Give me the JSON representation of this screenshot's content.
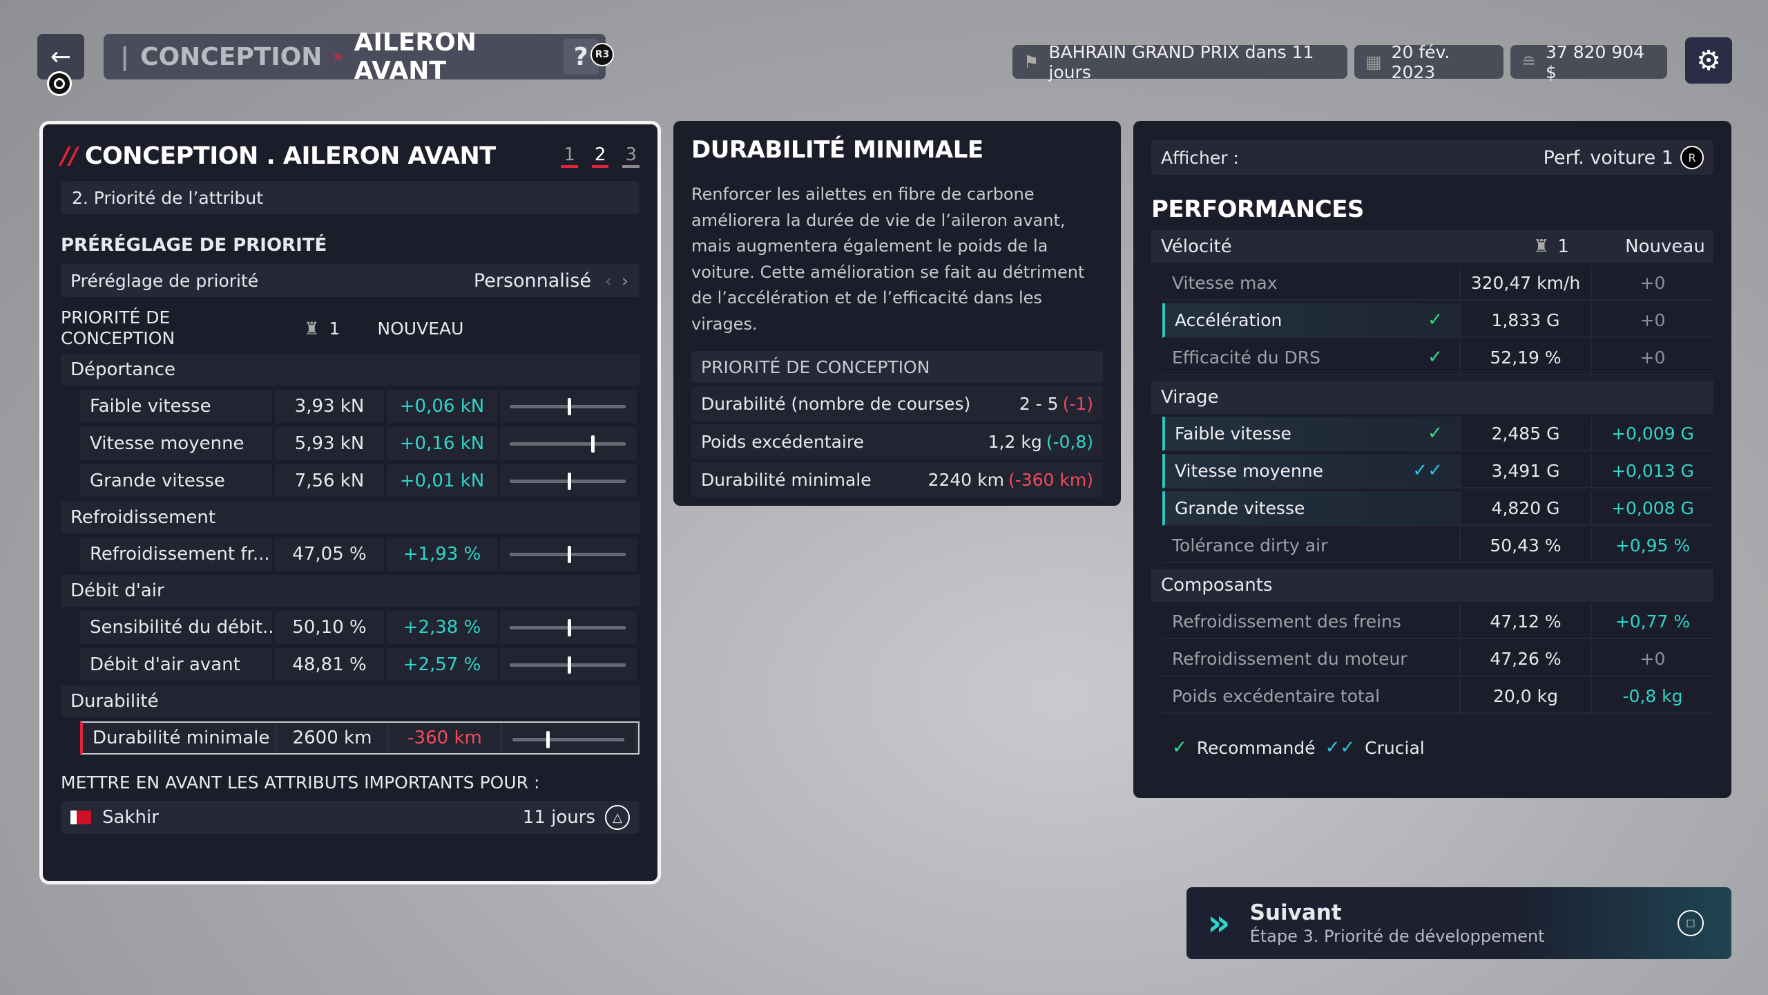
{
  "topbar": {
    "breadcrumb": [
      "CONCEPTION",
      "AILERON AVANT"
    ],
    "help_label": "?",
    "help_badge": "R3",
    "race": "BAHRAIN GRAND PRIX dans 11 jours",
    "date": "20 fév. 2023",
    "money": "37 820 904 $"
  },
  "left": {
    "title": "CONCEPTION . AILERON AVANT",
    "steps": [
      "1",
      "2",
      "3"
    ],
    "active_step": 2,
    "subheader": "2. Priorité de l’attribut",
    "preset_heading": "PRÉRÉGLAGE DE PRIORITÉ",
    "preset_label": "Préréglage de priorité",
    "preset_value": "Personnalisé",
    "col_heading": "PRIORITÉ DE CONCEPTION",
    "col_car": "1",
    "col_new": "NOUVEAU",
    "groups": [
      {
        "name": "Déportance",
        "rows": [
          {
            "label": "Faible vitesse",
            "value": "3,93 kN",
            "delta": "+0,06 kN",
            "slider": 0.5
          },
          {
            "label": "Vitesse moyenne",
            "value": "5,93 kN",
            "delta": "+0,16 kN",
            "slider": 0.7
          },
          {
            "label": "Grande vitesse",
            "value": "7,56 kN",
            "delta": "+0,01 kN",
            "slider": 0.5
          }
        ]
      },
      {
        "name": "Refroidissement",
        "rows": [
          {
            "label": "Refroidissement fr...",
            "value": "47,05 %",
            "delta": "+1,93 %",
            "slider": 0.5
          }
        ]
      },
      {
        "name": "Débit d'air",
        "rows": [
          {
            "label": "Sensibilité du débit...",
            "value": "50,10 %",
            "delta": "+2,38 %",
            "slider": 0.5
          },
          {
            "label": "Débit d'air avant",
            "value": "48,81 %",
            "delta": "+2,57 %",
            "slider": 0.5
          }
        ]
      },
      {
        "name": "Durabilité",
        "rows": [
          {
            "label": "Durabilité minimale",
            "value": "2600 km",
            "delta": "-360 km",
            "slider": 0.3,
            "selected": true,
            "negative": true
          }
        ]
      }
    ],
    "highlight_heading": "METTRE EN AVANT LES ATTRIBUTS IMPORTANTS POUR :",
    "track": "Sakhir",
    "track_days": "11 jours"
  },
  "mid": {
    "title": "DURABILITÉ MINIMALE",
    "description": "Renforcer les ailettes en fibre de carbone améliorera la durée de vie de l’aileron avant, mais augmentera également le poids de la voiture. Cette amélioration se fait au détriment de l’accélération et de l’efficacité dans les virages.",
    "section": "PRIORITÉ DE CONCEPTION",
    "rows": [
      {
        "label": "Durabilité (nombre de courses)",
        "value": "2 - 5",
        "delta": "(-1)",
        "delta_color": "#f04b5c"
      },
      {
        "label": "Poids excédentaire",
        "value": "1,2 kg",
        "delta": "(-0,8)",
        "delta_color": "#2fd6c8"
      },
      {
        "label": "Durabilité minimale",
        "value": "2240 km",
        "delta": "(-360 km)",
        "delta_color": "#f04b5c"
      }
    ]
  },
  "right": {
    "show_label": "Afficher :",
    "show_value": "Perf. voiture 1",
    "show_badge": "R",
    "title": "PERFORMANCES",
    "col_car": "1",
    "col_new": "Nouveau",
    "groups": [
      {
        "name": "Vélocité",
        "rows": [
          {
            "label": "Vitesse max",
            "value": "320,47 km/h",
            "delta": "+0",
            "mark": "",
            "hl": false
          },
          {
            "label": "Accélération",
            "value": "1,833 G",
            "delta": "+0",
            "mark": "recommended",
            "hl": true
          },
          {
            "label": "Efficacité du DRS",
            "value": "52,19 %",
            "delta": "+0",
            "mark": "recommended",
            "hl": false
          }
        ]
      },
      {
        "name": "Virage",
        "rows": [
          {
            "label": "Faible vitesse",
            "value": "2,485 G",
            "delta": "+0,009 G",
            "mark": "recommended",
            "hl": true
          },
          {
            "label": "Vitesse moyenne",
            "value": "3,491 G",
            "delta": "+0,013 G",
            "mark": "crucial",
            "hl": true
          },
          {
            "label": "Grande vitesse",
            "value": "4,820 G",
            "delta": "+0,008 G",
            "mark": "",
            "hl": true
          },
          {
            "label": "Tolérance dirty air",
            "value": "50,43 %",
            "delta": "+0,95 %",
            "mark": "",
            "hl": false
          }
        ]
      },
      {
        "name": "Composants",
        "rows": [
          {
            "label": "Refroidissement des freins",
            "value": "47,12 %",
            "delta": "+0,77 %",
            "mark": "",
            "hl": false
          },
          {
            "label": "Refroidissement du moteur",
            "value": "47,26 %",
            "delta": "+0",
            "mark": "",
            "hl": false
          },
          {
            "label": "Poids excédentaire total",
            "value": "20,0 kg",
            "delta": "-0,8 kg",
            "mark": "",
            "hl": false
          }
        ]
      }
    ],
    "legend_recommended": "Recommandé",
    "legend_crucial": "Crucial"
  },
  "next": {
    "title": "Suivant",
    "subtitle": "Étape 3. Priorité de développement"
  },
  "colors": {
    "accent_red": "#e0233a",
    "positive": "#2fd6c8",
    "negative": "#f04b5c",
    "check": "#2fe08a"
  }
}
